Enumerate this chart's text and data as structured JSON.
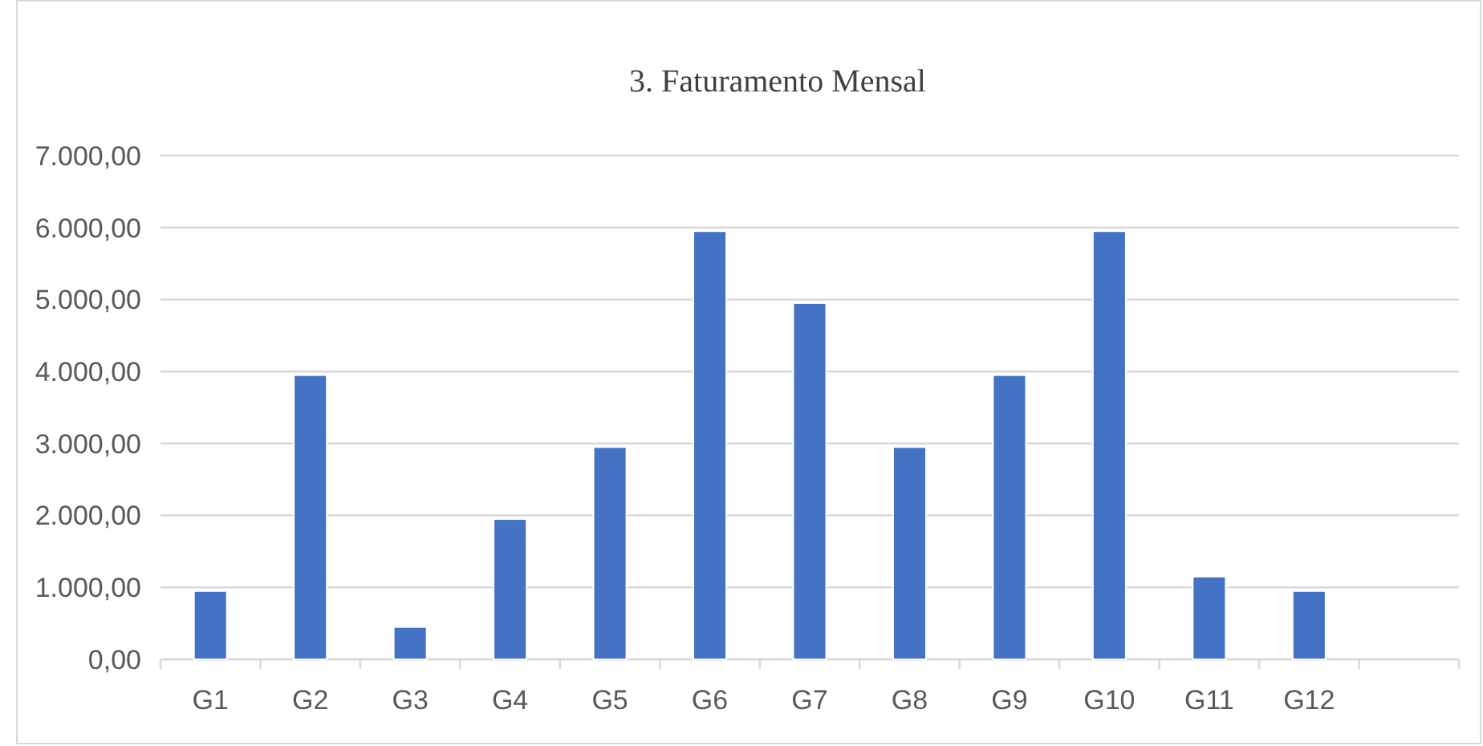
{
  "chart_data": {
    "type": "bar",
    "title": "3. Faturamento Mensal",
    "categories": [
      "G1",
      "G2",
      "G3",
      "G4",
      "G5",
      "G6",
      "G7",
      "G8",
      "G9",
      "G10",
      "G11",
      "G12",
      null
    ],
    "values": [
      950,
      3950,
      450,
      1950,
      2950,
      5950,
      4950,
      2950,
      3950,
      5950,
      1150,
      950,
      null
    ],
    "color": "#4472c4",
    "ylim": [
      0,
      7000
    ],
    "yticks": [
      {
        "value": 0,
        "label": "0,00"
      },
      {
        "value": 1000,
        "label": "1.000,00"
      },
      {
        "value": 2000,
        "label": "2.000,00"
      },
      {
        "value": 3000,
        "label": "3.000,00"
      },
      {
        "value": 4000,
        "label": "4.000,00"
      },
      {
        "value": 5000,
        "label": "5.000,00"
      },
      {
        "value": 6000,
        "label": "6.000,00"
      },
      {
        "value": 7000,
        "label": "7.000,00"
      }
    ],
    "grid": "y"
  }
}
